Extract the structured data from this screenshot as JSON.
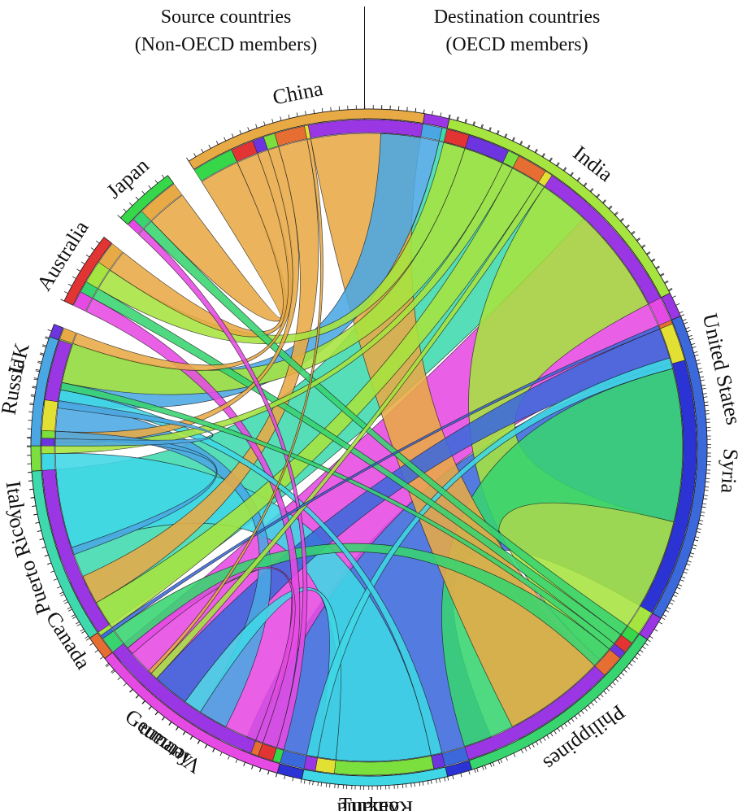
{
  "headers": {
    "source_line1": "Source countries",
    "source_line2": "(Non-OECD members)",
    "destination_line1": "Destination countries",
    "destination_line2": "(OECD members)"
  },
  "chart_data": {
    "type": "chord",
    "sources": [
      {
        "name": "Russia",
        "color": "#4aa7e4"
      },
      {
        "name": "Puerto Rico",
        "color": "#3fd9ae"
      },
      {
        "name": "Vietnam",
        "color": "#e64ae4"
      },
      {
        "name": "Romania",
        "color": "#3fd7e6"
      },
      {
        "name": "Philippines",
        "color": "#37d46f"
      },
      {
        "name": "Syria",
        "color": "#3b69dc"
      },
      {
        "name": "India",
        "color": "#a6e43f"
      },
      {
        "name": "China",
        "color": "#e8aa45"
      }
    ],
    "destinations": [
      {
        "name": "United States",
        "color": "#9a36e3"
      },
      {
        "name": "Turkey",
        "color": "#2c33d4"
      },
      {
        "name": "Germany",
        "color": "#e3e034"
      },
      {
        "name": "Canada",
        "color": "#e66e32"
      },
      {
        "name": "Italy",
        "color": "#7be03d"
      },
      {
        "name": "UK",
        "color": "#6c35e0"
      },
      {
        "name": "Australia",
        "color": "#e33434"
      },
      {
        "name": "Japan",
        "color": "#36d84a"
      }
    ],
    "flows": [
      {
        "source": "Russia",
        "destination": "United States",
        "value": 1.6
      },
      {
        "source": "Russia",
        "destination": "Germany",
        "value": 0.8
      },
      {
        "source": "Russia",
        "destination": "Italy",
        "value": 0.2
      },
      {
        "source": "Russia",
        "destination": "UK",
        "value": 0.2
      },
      {
        "source": "Puerto Rico",
        "destination": "United States",
        "value": 4.5
      },
      {
        "source": "Vietnam",
        "destination": "United States",
        "value": 4.5
      },
      {
        "source": "Vietnam",
        "destination": "Australia",
        "value": 0.4
      },
      {
        "source": "Vietnam",
        "destination": "Canada",
        "value": 0.2
      },
      {
        "source": "Vietnam",
        "destination": "Japan",
        "value": 0.2
      },
      {
        "source": "Romania",
        "destination": "Italy",
        "value": 2.6
      },
      {
        "source": "Romania",
        "destination": "Germany",
        "value": 0.5
      },
      {
        "source": "Romania",
        "destination": "United States",
        "value": 0.3
      },
      {
        "source": "Romania",
        "destination": "UK",
        "value": 0.3
      },
      {
        "source": "Philippines",
        "destination": "United States",
        "value": 4.2
      },
      {
        "source": "Philippines",
        "destination": "Canada",
        "value": 0.6
      },
      {
        "source": "Philippines",
        "destination": "Japan",
        "value": 0.3
      },
      {
        "source": "Philippines",
        "destination": "Australia",
        "value": 0.3
      },
      {
        "source": "Philippines",
        "destination": "UK",
        "value": 0.2
      },
      {
        "source": "Syria",
        "destination": "Turkey",
        "value": 6.8
      },
      {
        "source": "Syria",
        "destination": "Germany",
        "value": 1.0
      },
      {
        "source": "Syria",
        "destination": "Canada",
        "value": 0.1
      },
      {
        "source": "India",
        "destination": "United States",
        "value": 4.3
      },
      {
        "source": "India",
        "destination": "UK",
        "value": 1.1
      },
      {
        "source": "India",
        "destination": "Canada",
        "value": 0.8
      },
      {
        "source": "India",
        "destination": "Australia",
        "value": 0.6
      },
      {
        "source": "India",
        "destination": "Italy",
        "value": 0.3
      },
      {
        "source": "India",
        "destination": "Germany",
        "value": 0.2
      },
      {
        "source": "China",
        "destination": "United States",
        "value": 3.0
      },
      {
        "source": "China",
        "destination": "Japan",
        "value": 1.1
      },
      {
        "source": "China",
        "destination": "Canada",
        "value": 0.8
      },
      {
        "source": "China",
        "destination": "Australia",
        "value": 0.6
      },
      {
        "source": "China",
        "destination": "UK",
        "value": 0.3
      },
      {
        "source": "China",
        "destination": "Italy",
        "value": 0.3
      },
      {
        "source": "China",
        "destination": "Germany",
        "value": 0.1
      }
    ]
  }
}
